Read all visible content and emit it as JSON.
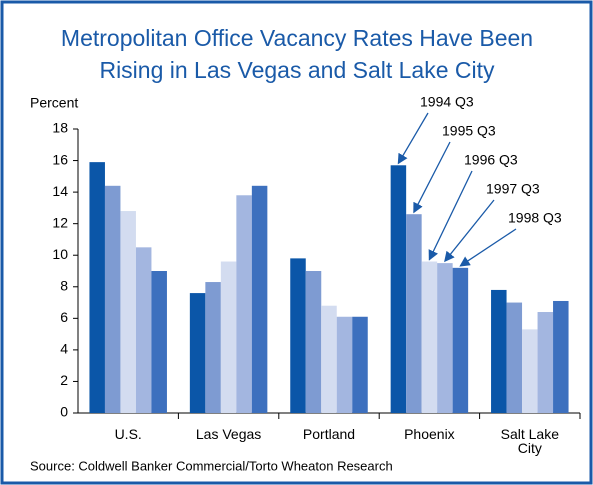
{
  "chart_data": {
    "type": "bar",
    "title": [
      "Metropolitan Office Vacancy Rates Have Been",
      "Rising in Las Vegas and Salt Lake City"
    ],
    "y_label": "Percent",
    "source": "Source: Coldwell Banker Commercial/Torto Wheaton Research",
    "categories": [
      "U.S.",
      "Las Vegas",
      "Portland",
      "Phoenix",
      "Salt Lake City"
    ],
    "series": [
      {
        "name": "1994 Q3",
        "color": "#0b56a8",
        "values": [
          15.9,
          7.6,
          9.8,
          15.7,
          7.8
        ]
      },
      {
        "name": "1995 Q3",
        "color": "#7e9bd2",
        "values": [
          14.4,
          8.3,
          9.0,
          12.6,
          7.0
        ]
      },
      {
        "name": "1996 Q3",
        "color": "#d3dcf0",
        "values": [
          12.8,
          9.6,
          6.8,
          9.6,
          5.3
        ]
      },
      {
        "name": "1997 Q3",
        "color": "#a3b6e0",
        "values": [
          10.5,
          13.8,
          6.1,
          9.5,
          6.4
        ]
      },
      {
        "name": "1998 Q3",
        "color": "#3d70be",
        "values": [
          9.0,
          14.4,
          6.1,
          9.2,
          7.1
        ]
      }
    ],
    "ylim": [
      0,
      18
    ],
    "yticks": [
      0,
      2,
      4,
      6,
      8,
      10,
      12,
      14,
      16,
      18
    ]
  }
}
